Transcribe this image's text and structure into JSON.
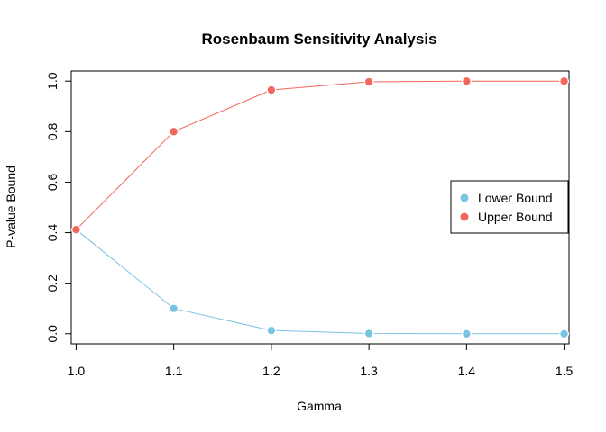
{
  "chart_data": {
    "type": "line",
    "title": "Rosenbaum Sensitivity Analysis",
    "xlabel": "Gamma",
    "ylabel": "P-value Bound",
    "x": [
      1.0,
      1.1,
      1.2,
      1.3,
      1.4,
      1.5
    ],
    "x_ticks": [
      "1.0",
      "1.1",
      "1.2",
      "1.3",
      "1.4",
      "1.5"
    ],
    "y_ticks": [
      "0.0",
      "0.2",
      "0.4",
      "0.6",
      "0.8",
      "1.0"
    ],
    "xlim": [
      0.995,
      1.505
    ],
    "ylim": [
      -0.04,
      1.04
    ],
    "grid": false,
    "legend_position": "right",
    "series": [
      {
        "name": "Lower Bound",
        "color": "#79c3e3",
        "values": [
          0.412,
          0.1,
          0.013,
          0.001,
          0.0,
          0.0
        ]
      },
      {
        "name": "Upper Bound",
        "color": "#f2665c",
        "values": [
          0.412,
          0.8,
          0.965,
          0.997,
          1.0,
          1.0
        ]
      }
    ]
  }
}
